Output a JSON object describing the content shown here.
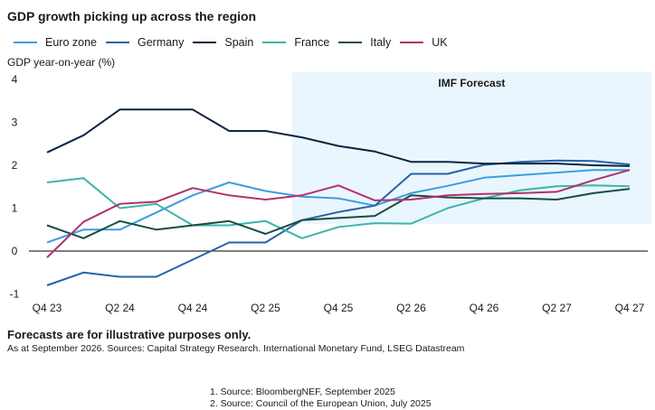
{
  "chart_data": {
    "type": "line",
    "title": "GDP growth picking up across the region",
    "ylabel": "GDP year-on-year (%)",
    "xlabel": "",
    "ylim": [
      -1,
      4
    ],
    "yticks": [
      "4",
      "3",
      "2",
      "1",
      "0",
      "-1"
    ],
    "x": [
      "Q4 23",
      "Q1 24",
      "Q2 24",
      "Q3 24",
      "Q4 24",
      "Q1 25",
      "Q2 25",
      "Q3 25",
      "Q4 25",
      "Q1 26",
      "Q2 26",
      "Q3 26",
      "Q4 26",
      "Q1 27",
      "Q2 27",
      "Q3 27",
      "Q4 27"
    ],
    "xtick_labels": [
      "Q4 23",
      "Q2 24",
      "Q4 24",
      "Q2 25",
      "Q4 25",
      "Q2 26",
      "Q4 26",
      "Q2 27",
      "Q4 27"
    ],
    "legend_position": "top",
    "grid": false,
    "annotation": {
      "label": "IMF Forecast",
      "from": "Q3 25",
      "to": "Q4 27",
      "color": "#eaf6fd"
    },
    "series": [
      {
        "name": "Euro zone",
        "color": "#3a9ee0",
        "values": [
          0.2,
          0.5,
          0.5,
          0.9,
          1.3,
          1.6,
          1.4,
          1.27,
          1.23,
          1.06,
          1.35,
          1.52,
          1.71,
          1.77,
          1.83,
          1.89,
          1.89
        ]
      },
      {
        "name": "Germany",
        "color": "#2563a8",
        "values": [
          -0.8,
          -0.5,
          -0.6,
          -0.6,
          -0.2,
          0.2,
          0.2,
          0.72,
          0.91,
          1.06,
          1.8,
          1.8,
          2.01,
          2.08,
          2.11,
          2.1,
          2.02
        ]
      },
      {
        "name": "Spain",
        "color": "#0f2441",
        "values": [
          2.3,
          2.7,
          3.3,
          3.3,
          3.3,
          2.8,
          2.8,
          2.65,
          2.45,
          2.32,
          2.08,
          2.08,
          2.04,
          2.04,
          2.04,
          2.0,
          1.98
        ]
      },
      {
        "name": "France",
        "color": "#3cb5aa",
        "values": [
          1.6,
          1.7,
          1.0,
          1.1,
          0.6,
          0.6,
          0.7,
          0.3,
          0.56,
          0.65,
          0.64,
          1.0,
          1.23,
          1.42,
          1.51,
          1.53,
          1.51
        ]
      },
      {
        "name": "Italy",
        "color": "#174e3f",
        "values": [
          0.6,
          0.3,
          0.7,
          0.5,
          0.6,
          0.7,
          0.4,
          0.72,
          0.77,
          0.82,
          1.3,
          1.25,
          1.23,
          1.23,
          1.2,
          1.35,
          1.45
        ]
      },
      {
        "name": "UK",
        "color": "#b3306f",
        "values": [
          -0.15,
          0.68,
          1.1,
          1.15,
          1.47,
          1.3,
          1.2,
          1.3,
          1.53,
          1.18,
          1.2,
          1.3,
          1.33,
          1.35,
          1.38,
          1.65,
          1.89
        ]
      }
    ]
  },
  "notes": {
    "disclaimer": "Forecasts are for illustrative purposes only.",
    "sources": "As at September 2026. Sources: Capital Strategy Research. International Monetary Fund, LSEG Datastream",
    "footnotes": [
      "1. Source: BloombergNEF, September 2025",
      "2. Source: Council of the European Union, July 2025"
    ]
  }
}
